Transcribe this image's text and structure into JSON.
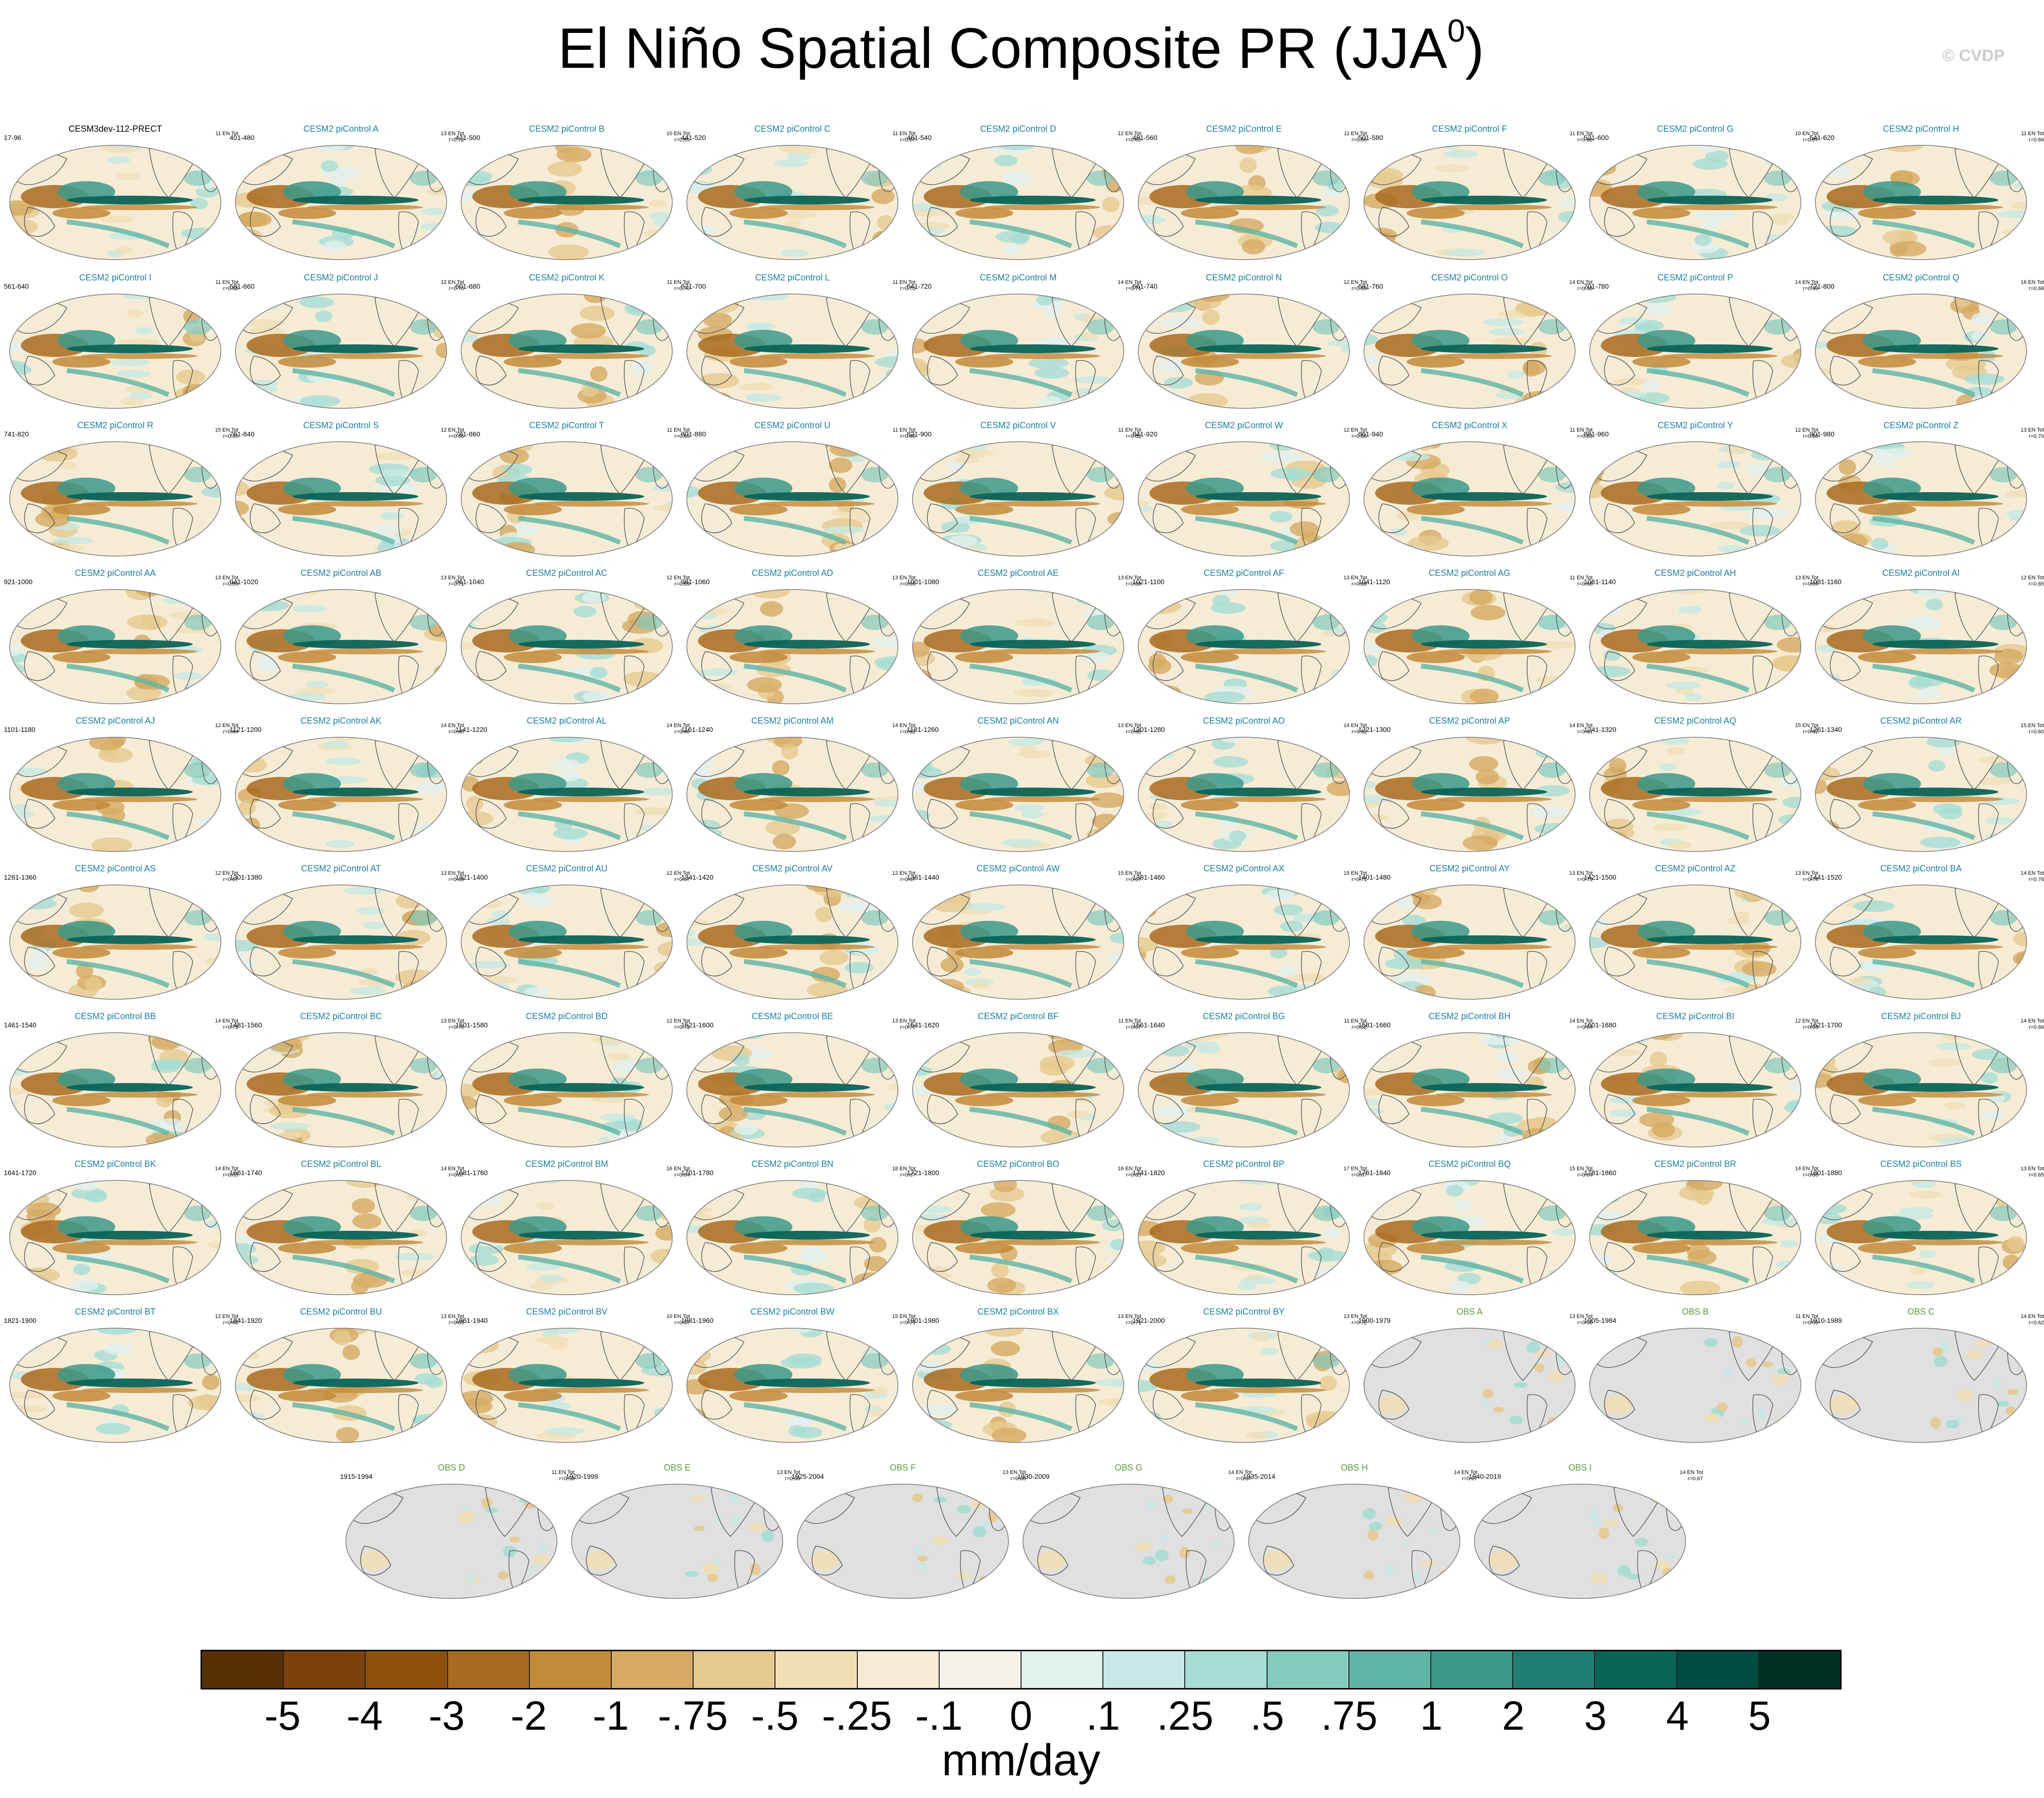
{
  "header": {
    "title": "El Niño Spatial Composite PR (JJA",
    "title_sup": "0",
    "title_close": ")",
    "copyright": "© CVDP"
  },
  "colors": {
    "model_title": "#1a7fa0",
    "obs_title": "#5a9a3a",
    "first_title": "#000000",
    "land_gray": "#e0e0e0"
  },
  "panels": [
    {
      "name": "CESM3dev-112-PRECT",
      "years": "17-96",
      "stat": "11 EN Tot",
      "r": "",
      "kind": "first"
    },
    {
      "name": "CESM2 piControl A",
      "years": "401-480",
      "stat": "13 EN Tot",
      "r": "r=0.72",
      "kind": "model"
    },
    {
      "name": "CESM2 piControl B",
      "years": "421-500",
      "stat": "10 EN Tot",
      "r": "r=0.65",
      "kind": "model"
    },
    {
      "name": "CESM2 piControl C",
      "years": "441-520",
      "stat": "11 EN Tot",
      "r": "r=0.67",
      "kind": "model"
    },
    {
      "name": "CESM2 piControl D",
      "years": "461-540",
      "stat": "12 EN Tot",
      "r": "r=0.65",
      "kind": "model"
    },
    {
      "name": "CESM2 piControl E",
      "years": "481-560",
      "stat": "11 EN Tot",
      "r": "r=0.66",
      "kind": "model"
    },
    {
      "name": "CESM2 piControl F",
      "years": "501-580",
      "stat": "11 EN Tot",
      "r": "r=0.68",
      "kind": "model"
    },
    {
      "name": "CESM2 piControl G",
      "years": "521-600",
      "stat": "10 EN Tot",
      "r": "r=0.67",
      "kind": "model"
    },
    {
      "name": "CESM2 piControl H",
      "years": "541-620",
      "stat": "11 EN Tot",
      "r": "r=0.66",
      "kind": "model"
    },
    {
      "name": "CESM2 piControl I",
      "years": "561-640",
      "stat": "11 EN Tot",
      "r": "r=0.68",
      "kind": "model"
    },
    {
      "name": "CESM2 piControl J",
      "years": "581-660",
      "stat": "12 EN Tot",
      "r": "r=0.70",
      "kind": "model"
    },
    {
      "name": "CESM2 piControl K",
      "years": "601-680",
      "stat": "11 EN Tot",
      "r": "r=0.70",
      "kind": "model"
    },
    {
      "name": "CESM2 piControl L",
      "years": "621-700",
      "stat": "11 EN Tot",
      "r": "r=0.70",
      "kind": "model"
    },
    {
      "name": "CESM2 piControl M",
      "years": "641-720",
      "stat": "14 EN Tot",
      "r": "r=0.71",
      "kind": "model"
    },
    {
      "name": "CESM2 piControl N",
      "years": "661-740",
      "stat": "12 EN Tot",
      "r": "r=0.69",
      "kind": "model"
    },
    {
      "name": "CESM2 piControl O",
      "years": "681-760",
      "stat": "14 EN Tot",
      "r": "r=0.68",
      "kind": "model"
    },
    {
      "name": "CESM2 piControl P",
      "years": "701-780",
      "stat": "14 EN Tot",
      "r": "r=0.69",
      "kind": "model"
    },
    {
      "name": "CESM2 piControl Q",
      "years": "721-800",
      "stat": "16 EN Tot",
      "r": "r=0.66",
      "kind": "model"
    },
    {
      "name": "CESM2 piControl R",
      "years": "741-820",
      "stat": "15 EN Tot",
      "r": "r=0.65",
      "kind": "model"
    },
    {
      "name": "CESM2 piControl S",
      "years": "761-840",
      "stat": "12 EN Tot",
      "r": "r=0.66",
      "kind": "model"
    },
    {
      "name": "CESM2 piControl T",
      "years": "781-860",
      "stat": "11 EN Tot",
      "r": "r=0.65",
      "kind": "model"
    },
    {
      "name": "CESM2 piControl U",
      "years": "801-880",
      "stat": "11 EN Tot",
      "r": "r=0.65",
      "kind": "model"
    },
    {
      "name": "CESM2 piControl V",
      "years": "821-900",
      "stat": "11 EN Tot",
      "r": "r=0.62",
      "kind": "model"
    },
    {
      "name": "CESM2 piControl W",
      "years": "841-920",
      "stat": "12 EN Tot",
      "r": "r=0.66",
      "kind": "model"
    },
    {
      "name": "CESM2 piControl X",
      "years": "861-940",
      "stat": "11 EN Tot",
      "r": "r=0.63",
      "kind": "model"
    },
    {
      "name": "CESM2 piControl Y",
      "years": "881-960",
      "stat": "12 EN Tot",
      "r": "r=0.68",
      "kind": "model"
    },
    {
      "name": "CESM2 piControl Z",
      "years": "901-980",
      "stat": "13 EN Tot",
      "r": "r=0.70",
      "kind": "model"
    },
    {
      "name": "CESM2 piControl AA",
      "years": "921-1000",
      "stat": "13 EN Tot",
      "r": "r=0.69",
      "kind": "model"
    },
    {
      "name": "CESM2 piControl AB",
      "years": "941-1020",
      "stat": "13 EN Tot",
      "r": "r=0.71",
      "kind": "model"
    },
    {
      "name": "CESM2 piControl AC",
      "years": "961-1040",
      "stat": "12 EN Tot",
      "r": "r=0.69",
      "kind": "model"
    },
    {
      "name": "CESM2 piControl AD",
      "years": "981-1060",
      "stat": "13 EN Tot",
      "r": "r=0.69",
      "kind": "model"
    },
    {
      "name": "CESM2 piControl AE",
      "years": "1001-1080",
      "stat": "13 EN Tot",
      "r": "r=0.68",
      "kind": "model"
    },
    {
      "name": "CESM2 piControl AF",
      "years": "1021-1100",
      "stat": "13 EN Tot",
      "r": "r=0.68",
      "kind": "model"
    },
    {
      "name": "CESM2 piControl AG",
      "years": "1041-1120",
      "stat": "11 EN Tot",
      "r": "r=0.68",
      "kind": "model"
    },
    {
      "name": "CESM2 piControl AH",
      "years": "1061-1140",
      "stat": "13 EN Tot",
      "r": "r=0.69",
      "kind": "model"
    },
    {
      "name": "CESM2 piControl AI",
      "years": "1081-1160",
      "stat": "12 EN Tot",
      "r": "r=0.65",
      "kind": "model"
    },
    {
      "name": "CESM2 piControl AJ",
      "years": "1101-1180",
      "stat": "12 EN Tot",
      "r": "r=0.64",
      "kind": "model"
    },
    {
      "name": "CESM2 piControl AK",
      "years": "1121-1200",
      "stat": "14 EN Tot",
      "r": "r=0.65",
      "kind": "model"
    },
    {
      "name": "CESM2 piControl AL",
      "years": "1141-1220",
      "stat": "14 EN Tot",
      "r": "r=0.66",
      "kind": "model"
    },
    {
      "name": "CESM2 piControl AM",
      "years": "1161-1240",
      "stat": "14 EN Tot",
      "r": "r=0.62",
      "kind": "model"
    },
    {
      "name": "CESM2 piControl AN",
      "years": "1181-1260",
      "stat": "13 EN Tot",
      "r": "r=0.65",
      "kind": "model"
    },
    {
      "name": "CESM2 piControl AO",
      "years": "1201-1280",
      "stat": "14 EN Tot",
      "r": "r=0.62",
      "kind": "model"
    },
    {
      "name": "CESM2 piControl AP",
      "years": "1221-1300",
      "stat": "14 EN Tot",
      "r": "r=0.61",
      "kind": "model"
    },
    {
      "name": "CESM2 piControl AQ",
      "years": "1241-1320",
      "stat": "15 EN Tot",
      "r": "r=0.62",
      "kind": "model"
    },
    {
      "name": "CESM2 piControl AR",
      "years": "1261-1340",
      "stat": "15 EN Tot",
      "r": "r=0.60",
      "kind": "model"
    },
    {
      "name": "CESM2 piControl AS",
      "years": "1281-1360",
      "stat": "12 EN Tot",
      "r": "r=0.67",
      "kind": "model"
    },
    {
      "name": "CESM2 piControl AT",
      "years": "1301-1380",
      "stat": "13 EN Tot",
      "r": "r=0.69",
      "kind": "model"
    },
    {
      "name": "CESM2 piControl AU",
      "years": "1321-1400",
      "stat": "12 EN Tot",
      "r": "r=0.67",
      "kind": "model"
    },
    {
      "name": "CESM2 piControl AV",
      "years": "1341-1420",
      "stat": "12 EN Tot",
      "r": "r=0.67",
      "kind": "model"
    },
    {
      "name": "CESM2 piControl AW",
      "years": "1361-1440",
      "stat": "15 EN Tot",
      "r": "r=0.67",
      "kind": "model"
    },
    {
      "name": "CESM2 piControl AX",
      "years": "1381-1460",
      "stat": "15 EN Tot",
      "r": "r=0.71",
      "kind": "model"
    },
    {
      "name": "CESM2 piControl AY",
      "years": "1401-1480",
      "stat": "13 EN Tot",
      "r": "r=0.73",
      "kind": "model"
    },
    {
      "name": "CESM2 piControl AZ",
      "years": "1421-1500",
      "stat": "13 EN Tot",
      "r": "r=0.74",
      "kind": "model"
    },
    {
      "name": "CESM2 piControl BA",
      "years": "1441-1520",
      "stat": "14 EN Tot",
      "r": "r=0.76",
      "kind": "model"
    },
    {
      "name": "CESM2 piControl BB",
      "years": "1461-1540",
      "stat": "14 EN Tot",
      "r": "r=0.73",
      "kind": "model"
    },
    {
      "name": "CESM2 piControl BC",
      "years": "1481-1560",
      "stat": "13 EN Tot",
      "r": "r=0.70",
      "kind": "model"
    },
    {
      "name": "CESM2 piControl BD",
      "years": "1501-1580",
      "stat": "12 EN Tot",
      "r": "r=0.71",
      "kind": "model"
    },
    {
      "name": "CESM2 piControl BE",
      "years": "1521-1600",
      "stat": "13 EN Tot",
      "r": "r=0.70",
      "kind": "model"
    },
    {
      "name": "CESM2 piControl BF",
      "years": "1541-1620",
      "stat": "11 EN Tot",
      "r": "r=0.67",
      "kind": "model"
    },
    {
      "name": "CESM2 piControl BG",
      "years": "1561-1640",
      "stat": "11 EN Tot",
      "r": "r=0.62",
      "kind": "model"
    },
    {
      "name": "CESM2 piControl BH",
      "years": "1581-1660",
      "stat": "14 EN Tot",
      "r": "r=0.64",
      "kind": "model"
    },
    {
      "name": "CESM2 piControl BI",
      "years": "1601-1680",
      "stat": "12 EN Tot",
      "r": "r=0.63",
      "kind": "model"
    },
    {
      "name": "CESM2 piControl BJ",
      "years": "1621-1700",
      "stat": "14 EN Tot",
      "r": "r=0.66",
      "kind": "model"
    },
    {
      "name": "CESM2 piControl BK",
      "years": "1641-1720",
      "stat": "14 EN Tot",
      "r": "r=0.65",
      "kind": "model"
    },
    {
      "name": "CESM2 piControl BL",
      "years": "1661-1740",
      "stat": "14 EN Tot",
      "r": "r=0.67",
      "kind": "model"
    },
    {
      "name": "CESM2 piControl BM",
      "years": "1681-1760",
      "stat": "16 EN Tot",
      "r": "r=0.64",
      "kind": "model"
    },
    {
      "name": "CESM2 piControl BN",
      "years": "1701-1780",
      "stat": "18 EN Tot",
      "r": "r=0.67",
      "kind": "model"
    },
    {
      "name": "CESM2 piControl BO",
      "years": "1721-1800",
      "stat": "16 EN Tot",
      "r": "r=0.65",
      "kind": "model"
    },
    {
      "name": "CESM2 piControl BP",
      "years": "1741-1820",
      "stat": "17 EN Tot",
      "r": "r=0.67",
      "kind": "model"
    },
    {
      "name": "CESM2 piControl BQ",
      "years": "1761-1840",
      "stat": "15 EN Tot",
      "r": "r=0.64",
      "kind": "model"
    },
    {
      "name": "CESM2 piControl BR",
      "years": "1781-1860",
      "stat": "14 EN Tot",
      "r": "r=0.66",
      "kind": "model"
    },
    {
      "name": "CESM2 piControl BS",
      "years": "1801-1880",
      "stat": "13 EN Tot",
      "r": "r=0.65",
      "kind": "model"
    },
    {
      "name": "CESM2 piControl BT",
      "years": "1821-1900",
      "stat": "12 EN Tot",
      "r": "r=0.68",
      "kind": "model"
    },
    {
      "name": "CESM2 piControl BU",
      "years": "1841-1920",
      "stat": "13 EN Tot",
      "r": "r=0.65",
      "kind": "model"
    },
    {
      "name": "CESM2 piControl BV",
      "years": "1861-1940",
      "stat": "10 EN Tot",
      "r": "r=0.67",
      "kind": "model"
    },
    {
      "name": "CESM2 piControl BW",
      "years": "1881-1960",
      "stat": "15 EN Tot",
      "r": "r=0.73",
      "kind": "model"
    },
    {
      "name": "CESM2 piControl BX",
      "years": "1901-1980",
      "stat": "13 EN Tot",
      "r": "r=0.71",
      "kind": "model"
    },
    {
      "name": "CESM2 piControl BY",
      "years": "1921-2000",
      "stat": "13 EN Tot",
      "r": "r=0.72",
      "kind": "model"
    },
    {
      "name": "OBS A",
      "years": "1900-1979",
      "stat": "13 EN Tot",
      "r": "r=0.56",
      "kind": "obs"
    },
    {
      "name": "OBS B",
      "years": "1905-1984",
      "stat": "11 EN Tot",
      "r": "r=0.59",
      "kind": "obs"
    },
    {
      "name": "OBS C",
      "years": "1910-1989",
      "stat": "14 EN Tot",
      "r": "r=0.62",
      "kind": "obs"
    },
    {
      "name": "OBS D",
      "years": "1915-1994",
      "stat": "11 EN Tot",
      "r": "r=0.58",
      "kind": "obs"
    },
    {
      "name": "OBS E",
      "years": "1920-1999",
      "stat": "13 EN Tot",
      "r": "r=0.66",
      "kind": "obs"
    },
    {
      "name": "OBS F",
      "years": "1925-2004",
      "stat": "13 EN Tot",
      "r": "r=0.66",
      "kind": "obs"
    },
    {
      "name": "OBS G",
      "years": "1930-2009",
      "stat": "14 EN Tot",
      "r": "r=0.67",
      "kind": "obs"
    },
    {
      "name": "OBS H",
      "years": "1935-2014",
      "stat": "14 EN Tot",
      "r": "r=0.67",
      "kind": "obs"
    },
    {
      "name": "OBS I",
      "years": "1940-2019",
      "stat": "14 EN Tot",
      "r": "r=0.67",
      "kind": "obs"
    }
  ],
  "colorbar": {
    "colors": [
      "#573006",
      "#7b4209",
      "#8e510d",
      "#a86a1e",
      "#c28a39",
      "#d6aa62",
      "#e6c98f",
      "#f0dfb6",
      "#f6ecd6",
      "#f4f1ea",
      "#e2f0ee",
      "#c7e8e4",
      "#a6ddd4",
      "#83cbbe",
      "#5fb4a5",
      "#3c998b",
      "#1f7e71",
      "#096357",
      "#014b40",
      "#002f26"
    ],
    "labels": [
      "-5",
      "-4",
      "-3",
      "-2",
      "-1",
      "-.75",
      "-.5",
      "-.25",
      "-.1",
      "0",
      ".1",
      ".25",
      ".5",
      ".75",
      "1",
      "2",
      "3",
      "4",
      "5"
    ],
    "units": "mm/day"
  }
}
